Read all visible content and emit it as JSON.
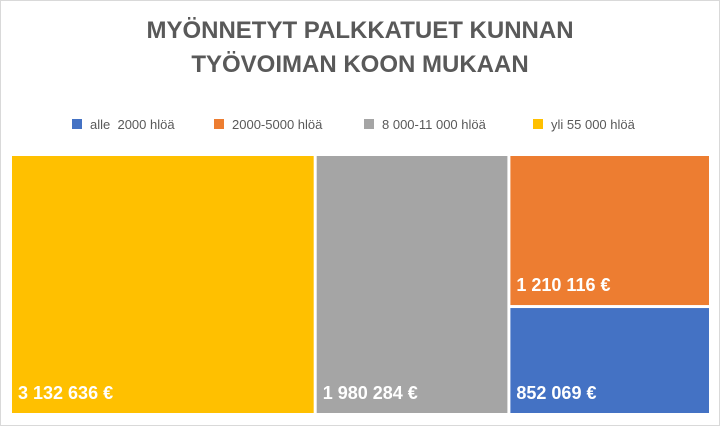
{
  "chart_data": {
    "type": "treemap",
    "title": [
      "MYÖNNETYT PALKKATUET KUNNAN",
      "TYÖVOIMAN KOON MUKAAN"
    ],
    "legend_position": "top",
    "series": [
      {
        "name": "alle  2000 hlöä",
        "value": 852069,
        "label": "852 069 €",
        "color": "#4472c4"
      },
      {
        "name": "2000-5000 hlöä",
        "value": 1210116,
        "label": "1 210 116 €",
        "color": "#ed7d31"
      },
      {
        "name": "8 000-11 000 hlöä",
        "value": 1980284,
        "label": "1 980 284 €",
        "color": "#a5a5a5"
      },
      {
        "name": "yli 55 000 hlöä",
        "value": 3132636,
        "label": "3 132 636 €",
        "color": "#ffc000"
      }
    ]
  }
}
